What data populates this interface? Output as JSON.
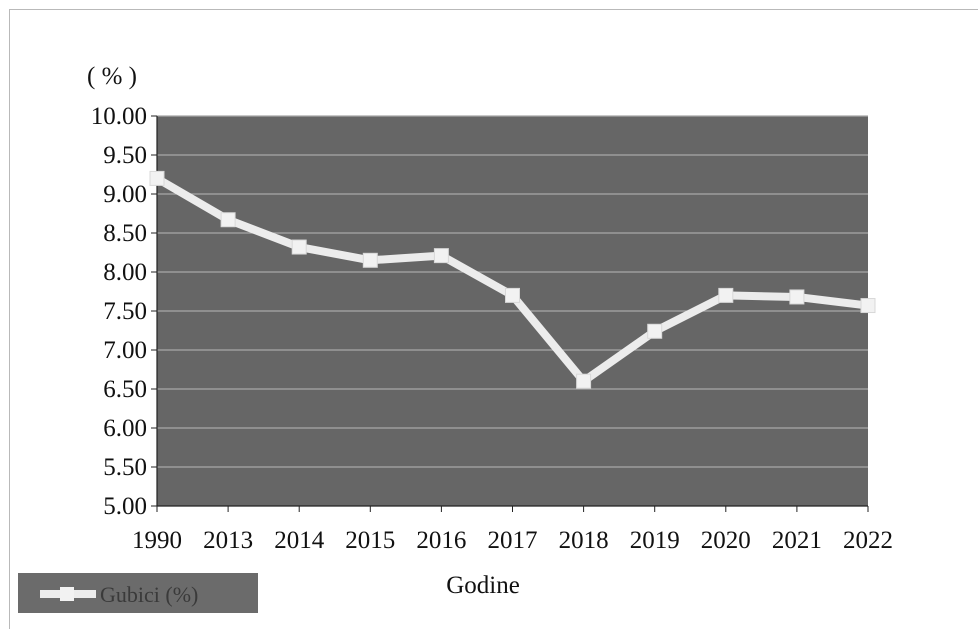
{
  "chart_data": {
    "type": "line",
    "categories": [
      "1990",
      "2013",
      "2014",
      "2015",
      "2016",
      "2017",
      "2018",
      "2019",
      "2020",
      "2021",
      "2022"
    ],
    "series": [
      {
        "name": "Gubici (%)",
        "values": [
          9.2,
          8.67,
          8.32,
          8.15,
          8.21,
          7.7,
          6.6,
          7.24,
          7.7,
          7.68,
          7.57
        ]
      }
    ],
    "title": "",
    "xlabel": "Godine",
    "ylabel": "( % )",
    "ylim": [
      5.0,
      10.0
    ],
    "yticks": [
      "5.00",
      "5.50",
      "6.00",
      "6.50",
      "7.00",
      "7.50",
      "8.00",
      "8.50",
      "9.00",
      "9.50",
      "10.00"
    ],
    "grid": true,
    "legend": "bottom-left",
    "colors": {
      "plot_background": "#666666",
      "gridline": "#a8a8a8",
      "series_line": "#ececec",
      "marker": "#f2f2f2",
      "legend_background": "#6b6b6b"
    }
  }
}
